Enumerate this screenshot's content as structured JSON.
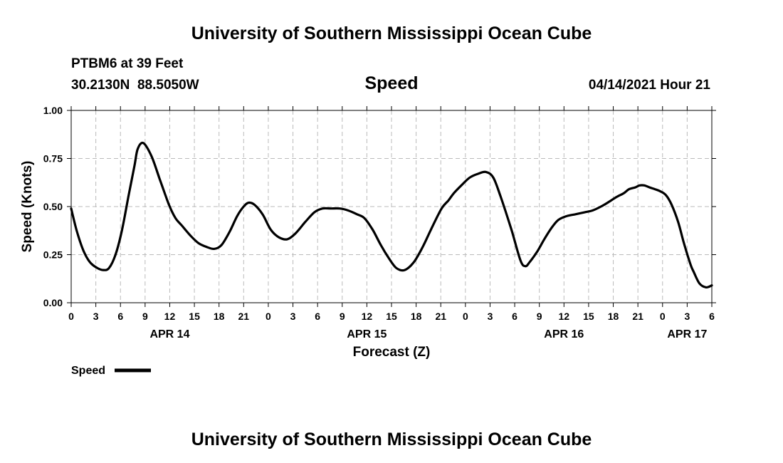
{
  "header": {
    "title": "University of Southern Mississippi Ocean Cube",
    "footer_title": "University of Southern Mississippi Ocean Cube",
    "station": "PTBM6 at 39 Feet",
    "coords": "30.2130N  88.5050W",
    "chart_name": "Speed",
    "timestamp": "04/14/2021 Hour 21"
  },
  "legend": {
    "label": "Speed"
  },
  "colors": {
    "line": "#000000",
    "grid": "#bbbbbb",
    "background": "#ffffff"
  },
  "chart_data": {
    "type": "line",
    "title": "Speed",
    "xlabel": "Forecast (Z)",
    "ylabel": "Speed (Knots)",
    "ylim": [
      0,
      1
    ],
    "xlim": [
      0,
      78
    ],
    "yticks": [
      0,
      0.25,
      0.5,
      0.75,
      1.0
    ],
    "ytick_labels": [
      "0.00",
      "0.25",
      "0.50",
      "0.75",
      "1.00"
    ],
    "xticks": [
      0,
      3,
      6,
      9,
      12,
      15,
      18,
      21,
      24,
      27,
      30,
      33,
      36,
      39,
      42,
      45,
      48,
      51,
      54,
      57,
      60,
      63,
      66,
      69,
      72,
      75,
      78
    ],
    "xtick_labels": [
      "0",
      "3",
      "6",
      "9",
      "12",
      "15",
      "18",
      "21",
      "0",
      "3",
      "6",
      "9",
      "12",
      "15",
      "18",
      "21",
      "0",
      "3",
      "6",
      "9",
      "12",
      "15",
      "18",
      "21",
      "0",
      "3",
      "6"
    ],
    "date_labels": [
      {
        "x": 12,
        "label": "APR 14"
      },
      {
        "x": 36,
        "label": "APR 15"
      },
      {
        "x": 60,
        "label": "APR 16"
      },
      {
        "x": 75,
        "label": "APR 17"
      }
    ],
    "grid": true,
    "series": [
      {
        "name": "Speed",
        "x": [
          0,
          0.7,
          1.5,
          2.3,
          3.2,
          3.9,
          4.6,
          5.4,
          6.2,
          7.0,
          7.7,
          8.1,
          8.8,
          9.8,
          10.8,
          11.9,
          12.7,
          13.5,
          14.5,
          15.5,
          16.5,
          17.4,
          18.3,
          19.3,
          20.2,
          21.0,
          21.6,
          22.3,
          23.3,
          24.3,
          25.3,
          26.3,
          27.3,
          28.5,
          29.6,
          30.6,
          31.6,
          32.7,
          33.7,
          34.8,
          35.7,
          36.7,
          37.7,
          38.7,
          39.6,
          40.6,
          41.7,
          42.8,
          43.8,
          45.1,
          45.9,
          46.6,
          47.5,
          48.5,
          49.5,
          50.5,
          51.4,
          52.3,
          53.6,
          54.7,
          55.3,
          55.8,
          56.8,
          57.6,
          58.5,
          59.3,
          60.3,
          61.4,
          62.5,
          63.5,
          64.5,
          65.3,
          66.4,
          67.3,
          67.9,
          68.7,
          69.2,
          69.8,
          70.4,
          71.1,
          71.7,
          72.4,
          73.1,
          73.9,
          74.6,
          75.4,
          75.8,
          76.5,
          77.3,
          78.0
        ],
        "values": [
          0.49,
          0.37,
          0.27,
          0.21,
          0.18,
          0.17,
          0.18,
          0.25,
          0.38,
          0.56,
          0.71,
          0.8,
          0.83,
          0.76,
          0.64,
          0.51,
          0.44,
          0.4,
          0.35,
          0.31,
          0.29,
          0.28,
          0.3,
          0.37,
          0.45,
          0.5,
          0.52,
          0.51,
          0.46,
          0.38,
          0.34,
          0.33,
          0.36,
          0.42,
          0.47,
          0.49,
          0.49,
          0.49,
          0.48,
          0.46,
          0.44,
          0.38,
          0.3,
          0.23,
          0.18,
          0.17,
          0.21,
          0.29,
          0.38,
          0.49,
          0.53,
          0.57,
          0.61,
          0.65,
          0.67,
          0.68,
          0.65,
          0.55,
          0.38,
          0.22,
          0.19,
          0.21,
          0.27,
          0.33,
          0.39,
          0.43,
          0.45,
          0.46,
          0.47,
          0.48,
          0.5,
          0.52,
          0.55,
          0.57,
          0.59,
          0.6,
          0.61,
          0.61,
          0.6,
          0.59,
          0.58,
          0.56,
          0.51,
          0.42,
          0.31,
          0.2,
          0.16,
          0.1,
          0.08,
          0.09
        ]
      }
    ]
  }
}
